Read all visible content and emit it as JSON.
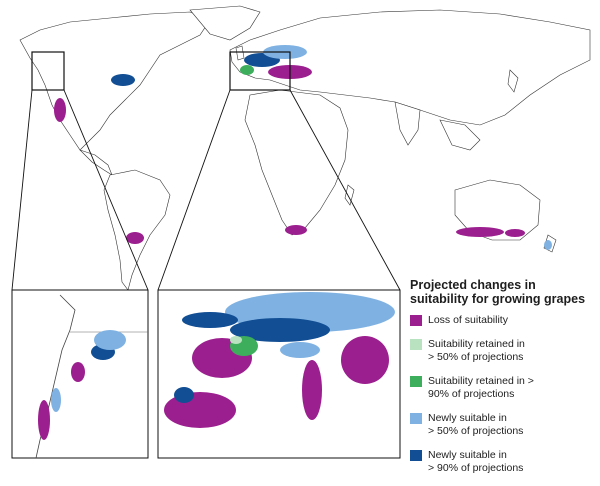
{
  "legend": {
    "title": "Projected changes in\nsuitability for growing grapes",
    "items": [
      {
        "key": "loss",
        "label": "Loss of suitability",
        "color": "#9c1f8f"
      },
      {
        "key": "retained50",
        "label": "Suitability retained in\n> 50% of projections",
        "color": "#b9e2c0"
      },
      {
        "key": "retained90",
        "label": "Suitability retained in >\n90% of projections",
        "color": "#3dae5c"
      },
      {
        "key": "new50",
        "label": "Newly suitable in\n> 50% of projections",
        "color": "#7fb2e2"
      },
      {
        "key": "new90",
        "label": "Newly suitable in\n> 90% of projections",
        "color": "#114e94"
      }
    ]
  },
  "colors": {
    "land": "#ffffff",
    "border": "#333333",
    "water": "#ffffff",
    "frame": "#111111"
  }
}
